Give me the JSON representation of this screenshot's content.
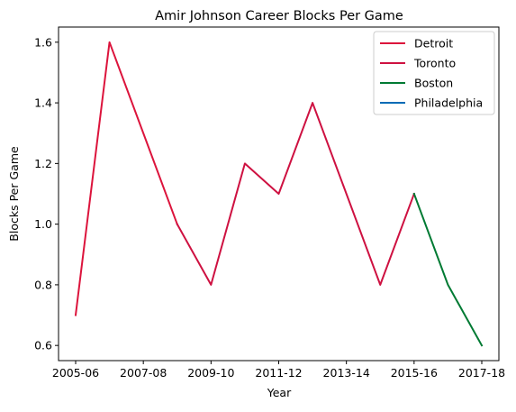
{
  "chart_data": {
    "type": "line",
    "title": "Amir Johnson Career Blocks Per Game",
    "xlabel": "Year",
    "ylabel": "Blocks Per Game",
    "x": [
      "2005-06",
      "2006-07",
      "2007-08",
      "2008-09",
      "2009-10",
      "2010-11",
      "2011-12",
      "2012-13",
      "2013-14",
      "2014-15",
      "2015-16",
      "2016-17",
      "2017-18"
    ],
    "x_tick_labels": [
      "2005-06",
      "2007-08",
      "2009-10",
      "2011-12",
      "2013-14",
      "2015-16",
      "2017-18"
    ],
    "y_ticks": [
      0.6,
      0.8,
      1.0,
      1.2,
      1.4,
      1.6
    ],
    "y_tick_labels": [
      "0.6",
      "0.8",
      "1.0",
      "1.2",
      "1.4",
      "1.6"
    ],
    "ylim": [
      0.55,
      1.65
    ],
    "grid": false,
    "legend_position": "top-right",
    "series": [
      {
        "name": "Detroit",
        "color": "#dc143c",
        "x": [
          "2005-06",
          "2006-07",
          "2007-08",
          "2008-09"
        ],
        "values": [
          0.7,
          1.6,
          1.3,
          1.0
        ]
      },
      {
        "name": "Toronto",
        "color": "#ce1141",
        "x": [
          "2008-09",
          "2009-10",
          "2010-11",
          "2011-12",
          "2012-13",
          "2013-14",
          "2014-15",
          "2015-16"
        ],
        "values": [
          1.0,
          0.8,
          1.2,
          1.1,
          1.4,
          1.1,
          0.8,
          1.1
        ]
      },
      {
        "name": "Boston",
        "color": "#007a33",
        "x": [
          "2015-16",
          "2016-17",
          "2017-18"
        ],
        "values": [
          1.1,
          0.8,
          0.6
        ]
      },
      {
        "name": "Philadelphia",
        "color": "#006bb6",
        "x": [],
        "values": []
      }
    ]
  }
}
